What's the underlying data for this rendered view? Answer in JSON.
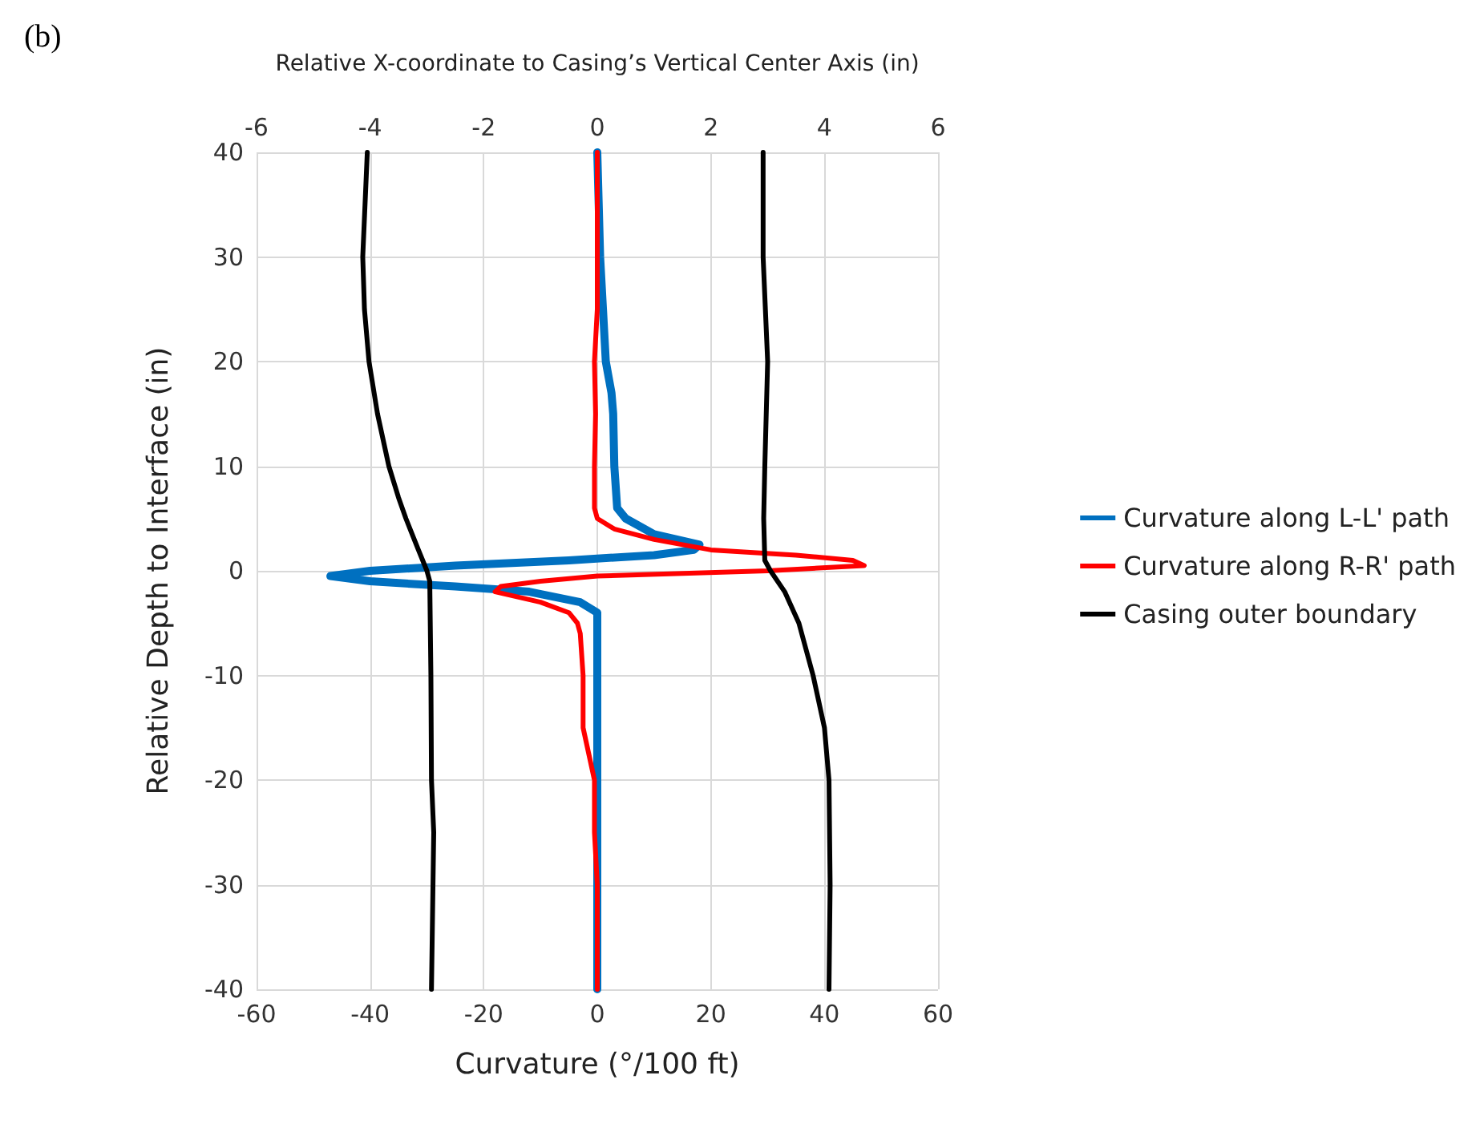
{
  "chart_data": {
    "type": "line",
    "title": "(b)",
    "xlabel": "Curvature (°/100 ft)",
    "ylabel": "Relative Depth to Interface (in)",
    "x2label": "Relative X-coordinate to Casing’s Vertical Center Axis (in)",
    "xlim": [
      -60,
      60
    ],
    "xticks": [
      -60,
      -40,
      -20,
      0,
      20,
      40,
      60
    ],
    "x2lim": [
      -6,
      6
    ],
    "x2ticks": [
      -6,
      -4,
      -2,
      0,
      2,
      4,
      6
    ],
    "ylim": [
      -40,
      40
    ],
    "yticks": [
      -40,
      -30,
      -20,
      -10,
      0,
      10,
      20,
      30,
      40
    ],
    "grid": true,
    "legend": "right",
    "marker": "none",
    "line_style": "solid",
    "series": [
      {
        "name": "Curvature along L-L' path",
        "color": "#0070c0",
        "x": [
          0,
          0.5,
          1,
          1.5,
          2.5,
          2.8,
          3,
          3.5,
          5,
          10,
          18,
          17,
          10,
          -5,
          -25,
          -40,
          -47,
          -40,
          -25,
          -12,
          -3,
          0,
          0,
          0,
          0,
          0,
          0
        ],
        "values": [
          40,
          30,
          25,
          20,
          17,
          15,
          10,
          6,
          5,
          3.5,
          2.5,
          2,
          1.5,
          1,
          0.5,
          0,
          -0.5,
          -1,
          -1.5,
          -2,
          -3,
          -4,
          -5,
          -10,
          -15,
          -20,
          -40
        ]
      },
      {
        "name": "Curvature along R-R' path",
        "color": "#ff0000",
        "x": [
          0,
          0,
          -0.5,
          -0.3,
          -0.5,
          -0.5,
          0,
          3,
          10,
          20,
          35,
          45,
          47,
          30,
          0,
          -10,
          -17,
          -18,
          -10,
          -5,
          -3.5,
          -3,
          -2.5,
          -2.5,
          -0.5,
          -0.5,
          0,
          0
        ],
        "values": [
          40,
          25,
          20,
          15,
          10,
          6,
          5,
          4,
          3,
          2,
          1.5,
          1,
          0.5,
          0,
          -0.5,
          -1,
          -1.5,
          -2,
          -3,
          -4,
          -5,
          -6,
          -10,
          -15,
          -20,
          -25,
          -30,
          -40
        ]
      },
      {
        "name": "Casing outer boundary",
        "color": "#000000",
        "axis": "x2",
        "x": [
          -4.05,
          -4.13,
          -4.1,
          -4.02,
          -3.87,
          -3.67,
          -3.5,
          -3.37,
          -3.15,
          -3.0,
          -2.95,
          -2.93,
          -2.92,
          -2.88,
          -2.92
        ],
        "values": [
          40,
          30,
          25,
          20,
          15,
          10,
          7,
          5,
          2,
          0,
          -1,
          -10,
          -20,
          -25,
          -40
        ]
      },
      {
        "color": "#000000",
        "axis": "x2",
        "x": [
          2.92,
          2.92,
          3.0,
          2.95,
          2.93,
          2.95,
          3.05,
          3.3,
          3.55,
          3.8,
          4.0,
          4.08,
          4.1,
          4.08
        ],
        "values": [
          40,
          30,
          20,
          10,
          5,
          1,
          0,
          -2,
          -5,
          -10,
          -15,
          -20,
          -30,
          -40
        ]
      }
    ]
  }
}
